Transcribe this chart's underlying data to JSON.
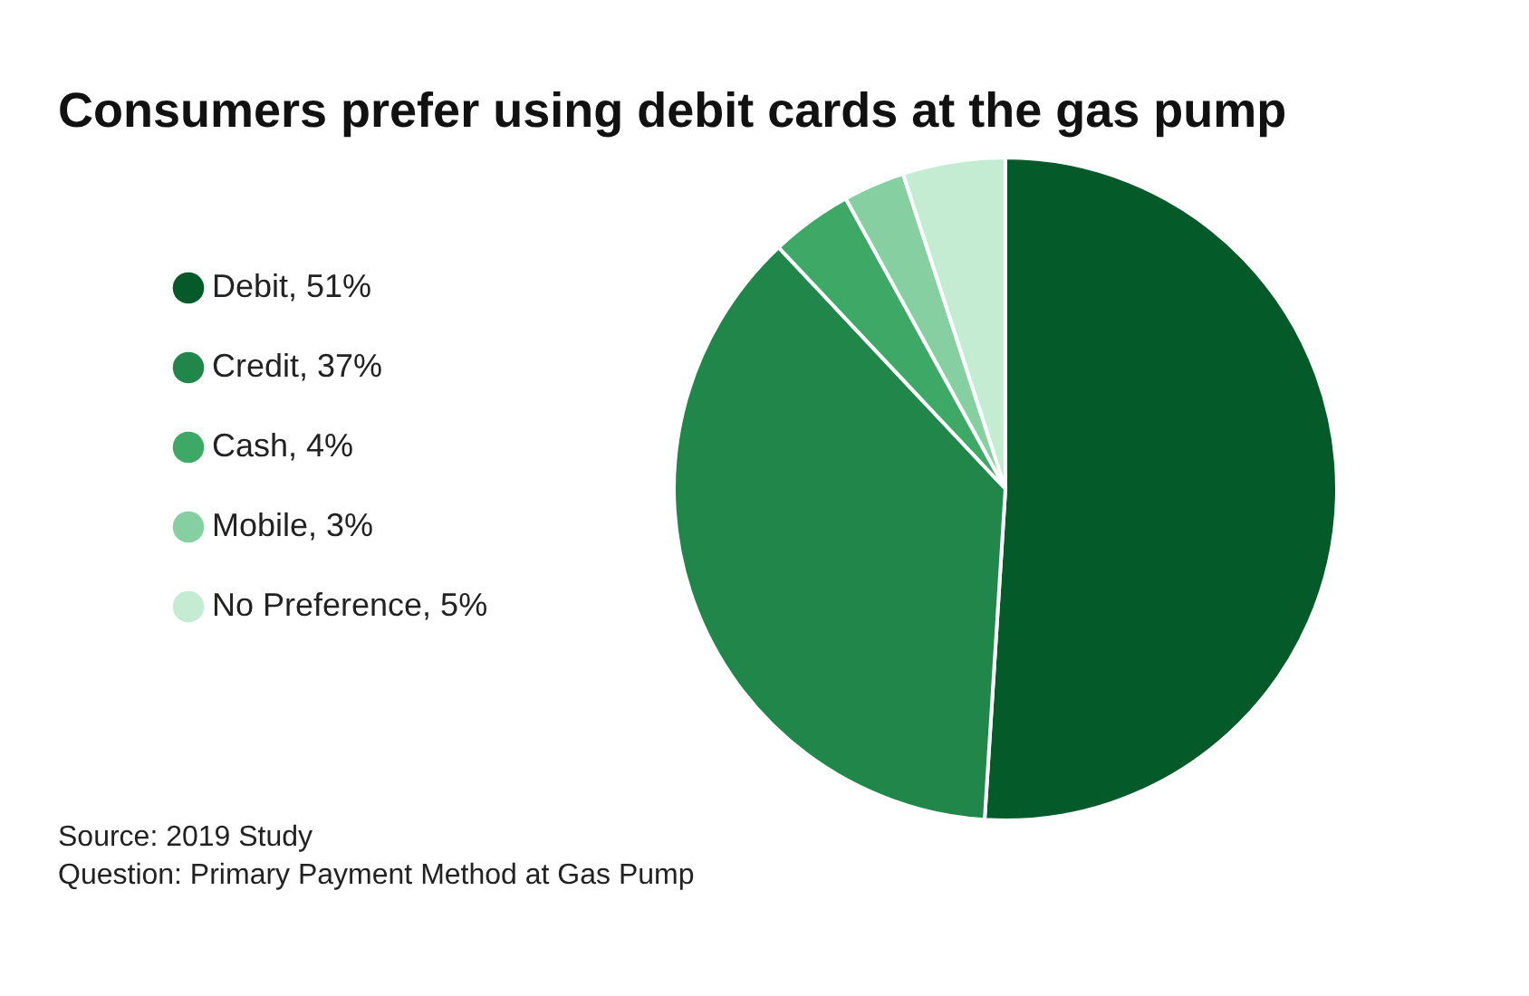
{
  "chart_data": {
    "type": "pie",
    "title": "Consumers prefer using debit cards at the gas pump",
    "categories": [
      "Debit, 51%",
      "Credit, 37%",
      "Cash, 4%",
      "Mobile, 3%",
      "No Preference, 5%"
    ],
    "values": [
      51,
      37,
      4,
      3,
      5
    ],
    "colors": [
      "#045a28",
      "#21864a",
      "#3ea867",
      "#85cfa0",
      "#c3ecd2"
    ],
    "legend": "left",
    "annotations": [
      "Source: 2019 Study",
      "Question: Primary Payment Method at Gas Pump"
    ]
  }
}
